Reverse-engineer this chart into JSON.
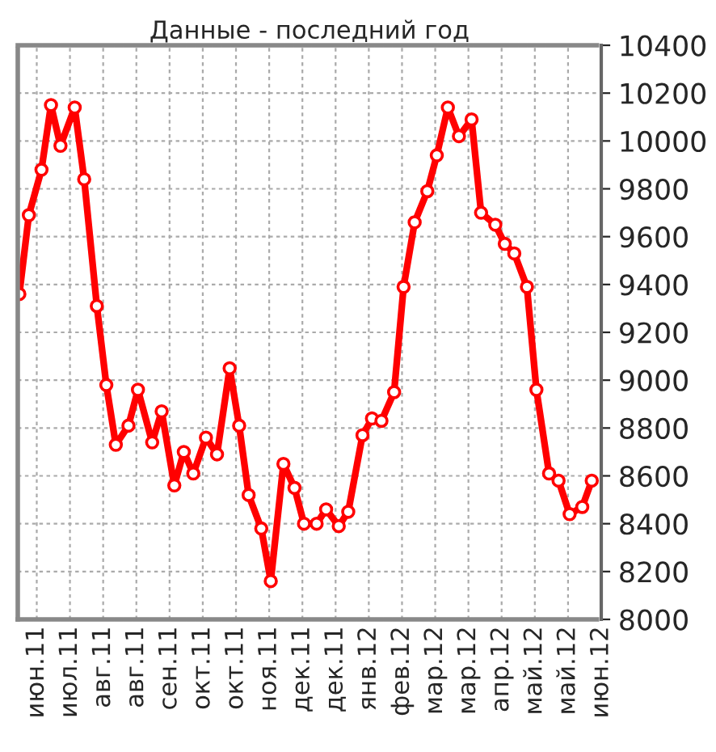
{
  "chart_data": {
    "type": "line",
    "title": "Данные - последний год",
    "x": [
      "2011-06-13",
      "2011-06-19",
      "2011-06-27",
      "2011-07-03",
      "2011-07-09",
      "2011-07-18",
      "2011-07-24",
      "2011-08-01",
      "2011-08-07",
      "2011-08-13",
      "2011-08-21",
      "2011-08-27",
      "2011-09-05",
      "2011-09-11",
      "2011-09-19",
      "2011-09-25",
      "2011-10-01",
      "2011-10-09",
      "2011-10-16",
      "2011-10-24",
      "2011-10-30",
      "2011-11-05",
      "2011-11-13",
      "2011-11-19",
      "2011-11-27",
      "2011-12-04",
      "2011-12-10",
      "2011-12-18",
      "2011-12-24",
      "2012-01-01",
      "2012-01-07",
      "2012-01-16",
      "2012-01-22",
      "2012-01-28",
      "2012-02-05",
      "2012-02-11",
      "2012-02-18",
      "2012-02-26",
      "2012-03-03",
      "2012-03-10",
      "2012-03-17",
      "2012-03-25",
      "2012-03-31",
      "2012-04-09",
      "2012-04-15",
      "2012-04-21",
      "2012-04-29",
      "2012-05-05",
      "2012-05-13",
      "2012-05-19",
      "2012-05-26",
      "2012-06-03",
      "2012-06-09"
    ],
    "series": [
      {
        "color": "#ff0000",
        "values": [
          9360,
          9690,
          9880,
          10150,
          9980,
          10140,
          9840,
          9310,
          8980,
          8730,
          8810,
          8960,
          8740,
          8870,
          8560,
          8700,
          8610,
          8760,
          8690,
          9050,
          8810,
          8520,
          8380,
          8160,
          8650,
          8550,
          8400,
          8400,
          8460,
          8390,
          8450,
          8770,
          8840,
          8830,
          8950,
          9390,
          9660,
          9790,
          9940,
          10140,
          10020,
          10090,
          9700,
          9650,
          9570,
          9530,
          9390,
          8960,
          8610,
          8580,
          8440,
          8470,
          8580
        ]
      }
    ],
    "xlim": [
      "2011-06-12",
      "2012-06-15"
    ],
    "xticks": [
      {
        "value": "2011-06-24",
        "label": "июн.11"
      },
      {
        "value": "2011-07-15",
        "label": "июл.11"
      },
      {
        "value": "2011-08-05",
        "label": "авг.11"
      },
      {
        "value": "2011-08-26",
        "label": "авг.11"
      },
      {
        "value": "2011-09-16",
        "label": "сен.11"
      },
      {
        "value": "2011-10-07",
        "label": "окт.11"
      },
      {
        "value": "2011-10-28",
        "label": "окт.11"
      },
      {
        "value": "2011-11-18",
        "label": "ноя.11"
      },
      {
        "value": "2011-12-09",
        "label": "дек.11"
      },
      {
        "value": "2011-12-30",
        "label": "дек.11"
      },
      {
        "value": "2012-01-20",
        "label": "янв.12"
      },
      {
        "value": "2012-02-10",
        "label": "фев.12"
      },
      {
        "value": "2012-03-02",
        "label": "мар.12"
      },
      {
        "value": "2012-03-23",
        "label": "мар.12"
      },
      {
        "value": "2012-04-13",
        "label": "апр.12"
      },
      {
        "value": "2012-05-04",
        "label": "май.12"
      },
      {
        "value": "2012-05-25",
        "label": "май.12"
      },
      {
        "value": "2012-06-15",
        "label": "июн.12"
      }
    ],
    "ylim": [
      8000,
      10400
    ],
    "yticks": [
      8000,
      8200,
      8400,
      8600,
      8800,
      9000,
      9200,
      9400,
      9600,
      9800,
      10000,
      10200,
      10400
    ],
    "grid": true,
    "marker": "circle",
    "line_style": "solid"
  }
}
